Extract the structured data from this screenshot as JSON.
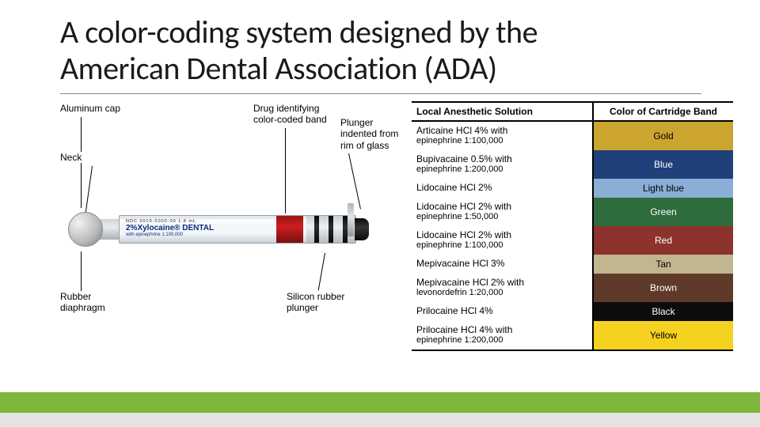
{
  "title": "A color-coding system designed by the American Dental Association (ADA)",
  "diagram": {
    "labels": {
      "aluminum_cap": "Aluminum cap",
      "neck": "Neck",
      "rubber_diaphragm": "Rubber\ndiaphragm",
      "drug_band": "Drug identifying\ncolor-coded band",
      "plunger_indent": "Plunger\nindented from\nrim of glass",
      "silicon_plunger": "Silicon rubber\nplunger"
    },
    "cartridge_print": {
      "ndc": "NDC 0015-0000-00     1.8 mL",
      "main_line": "2%Xylocaine® DENTAL",
      "sub_line": "with epinephrine 1:100,000"
    },
    "colors": {
      "cap": "#b9b9b9",
      "red_band": "#cc1e1e",
      "plunger_rib": "#111111",
      "lead_line": "#000000",
      "body_fill": "#eef2f5"
    }
  },
  "table": {
    "headers": {
      "solution": "Local Anesthetic Solution",
      "color": "Color of Cartridge Band"
    },
    "rows": [
      {
        "solution": "Articaine HCl 4% with",
        "sub": "epinephrine 1:100,000",
        "color_name": "Gold",
        "hex": "#cba52e",
        "text_dark": true
      },
      {
        "solution": "Bupivacaine 0.5% with",
        "sub": "epinephrine 1:200,000",
        "color_name": "Blue",
        "hex": "#20407a",
        "text_dark": false
      },
      {
        "solution": "Lidocaine HCl 2%",
        "sub": "",
        "color_name": "Light blue",
        "hex": "#8aaed6",
        "text_dark": true
      },
      {
        "solution": "Lidocaine HCl 2% with",
        "sub": "epinephrine 1:50,000",
        "color_name": "Green",
        "hex": "#2e6b3d",
        "text_dark": false
      },
      {
        "solution": "Lidocaine HCl 2% with",
        "sub": "epinephrine 1:100,000",
        "color_name": "Red",
        "hex": "#8b332c",
        "text_dark": false
      },
      {
        "solution": "Mepivacaine HCl 3%",
        "sub": "",
        "color_name": "Tan",
        "hex": "#c2b68e",
        "text_dark": true
      },
      {
        "solution": "Mepivacaine HCl 2% with",
        "sub": "levonordefrin 1:20,000",
        "color_name": "Brown",
        "hex": "#5f3a2a",
        "text_dark": false
      },
      {
        "solution": "Prilocaine HCl 4%",
        "sub": "",
        "color_name": "Black",
        "hex": "#0c0c0c",
        "text_dark": false
      },
      {
        "solution": "Prilocaine HCl 4% with",
        "sub": "epinephrine 1:200,000",
        "color_name": "Yellow",
        "hex": "#f4d21f",
        "text_dark": true
      }
    ]
  },
  "decor": {
    "stripe_green": "#7eb63c",
    "stripe_gray": "#e3e3e3"
  }
}
